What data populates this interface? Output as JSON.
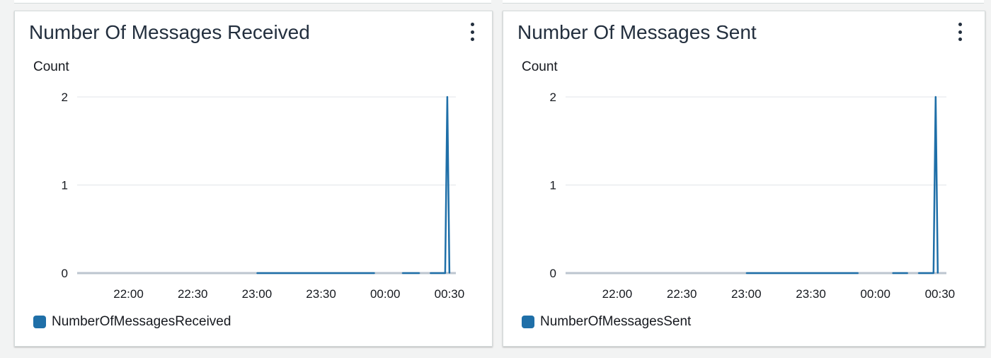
{
  "colors": {
    "series": "#1f6fa8",
    "zero_line": "#bcc5cf",
    "grid": "#e1e4e8",
    "text": "#16191f"
  },
  "panels": [
    {
      "title": "Number Of Messages Received",
      "menu_icon": "vertical-ellipsis-icon",
      "legend_label": "NumberOfMessagesReceived",
      "chart_data": {
        "type": "line",
        "ylabel": "Count",
        "y_ticks": [
          0,
          1,
          2
        ],
        "ylim": [
          0,
          2
        ],
        "x_ticks": [
          "22:00",
          "22:30",
          "23:00",
          "23:30",
          "00:00",
          "00:30"
        ],
        "x_range": [
          "21:36",
          "00:33"
        ],
        "grid": "horizontal",
        "legend_position": "bottom-left",
        "series": [
          {
            "name": "NumberOfMessagesReceived",
            "color": "#1f6fa8",
            "points": [
              {
                "x": "23:00",
                "y": 0
              },
              {
                "x": "23:55",
                "y": 0
              },
              {
                "x": "23:57",
                "y": null
              },
              {
                "x": "00:08",
                "y": 0
              },
              {
                "x": "00:16",
                "y": 0
              },
              {
                "x": "00:19",
                "y": null
              },
              {
                "x": "00:21",
                "y": 0
              },
              {
                "x": "00:28",
                "y": 0
              },
              {
                "x": "00:29",
                "y": 2
              },
              {
                "x": "00:30",
                "y": 0
              }
            ]
          }
        ]
      }
    },
    {
      "title": "Number Of Messages Sent",
      "menu_icon": "vertical-ellipsis-icon",
      "legend_label": "NumberOfMessagesSent",
      "chart_data": {
        "type": "line",
        "ylabel": "Count",
        "y_ticks": [
          0,
          1,
          2
        ],
        "ylim": [
          0,
          2
        ],
        "x_ticks": [
          "22:00",
          "22:30",
          "23:00",
          "23:30",
          "00:00",
          "00:30"
        ],
        "x_range": [
          "21:36",
          "00:33"
        ],
        "grid": "horizontal",
        "legend_position": "bottom-left",
        "series": [
          {
            "name": "NumberOfMessagesSent",
            "color": "#1f6fa8",
            "points": [
              {
                "x": "23:00",
                "y": 0
              },
              {
                "x": "23:52",
                "y": 0
              },
              {
                "x": "23:54",
                "y": null
              },
              {
                "x": "00:08",
                "y": 0
              },
              {
                "x": "00:15",
                "y": 0
              },
              {
                "x": "00:18",
                "y": null
              },
              {
                "x": "00:20",
                "y": 0
              },
              {
                "x": "00:27",
                "y": 0
              },
              {
                "x": "00:28",
                "y": 2
              },
              {
                "x": "00:29",
                "y": 0
              }
            ]
          }
        ]
      }
    }
  ]
}
